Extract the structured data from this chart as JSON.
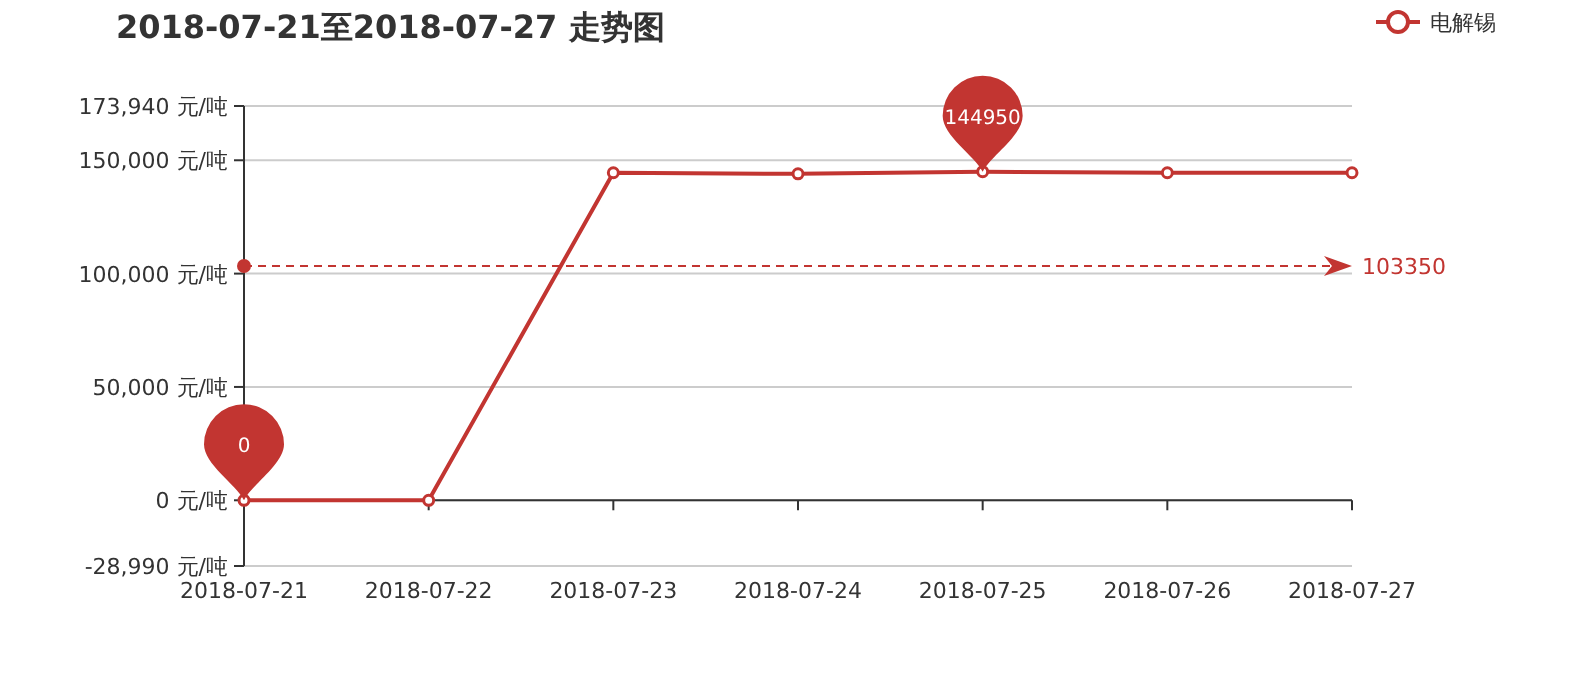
{
  "chart_data": {
    "type": "line",
    "title": "2018-07-21至2018-07-27 走势图",
    "categories": [
      "2018-07-21",
      "2018-07-22",
      "2018-07-23",
      "2018-07-24",
      "2018-07-25",
      "2018-07-26",
      "2018-07-27"
    ],
    "series": [
      {
        "name": "电解锡",
        "color": "#c23531",
        "values": [
          0,
          0,
          144500,
          144000,
          144950,
          144500,
          144500
        ]
      }
    ],
    "ylim": [
      -28990,
      173940
    ],
    "yticks": [
      {
        "value": -28990,
        "label": "-28,990 元/吨"
      },
      {
        "value": 0,
        "label": "0 元/吨"
      },
      {
        "value": 50000,
        "label": "50,000 元/吨"
      },
      {
        "value": 100000,
        "label": "100,000 元/吨"
      },
      {
        "value": 150000,
        "label": "150,000 元/吨"
      },
      {
        "value": 173940,
        "label": "173,940 元/吨"
      }
    ],
    "grid": "y",
    "legend": "top right",
    "marker": "circle",
    "line_style": "solid",
    "ref_lines": [
      {
        "axis": "y",
        "value": 103350,
        "label": "103350",
        "color": "#c23531",
        "line_style": "dashed"
      }
    ],
    "annotations": [
      {
        "text": "144950",
        "x": "2018-07-25",
        "y": 144950
      },
      {
        "text": "0",
        "x": "2018-07-21",
        "y": 0
      }
    ]
  }
}
